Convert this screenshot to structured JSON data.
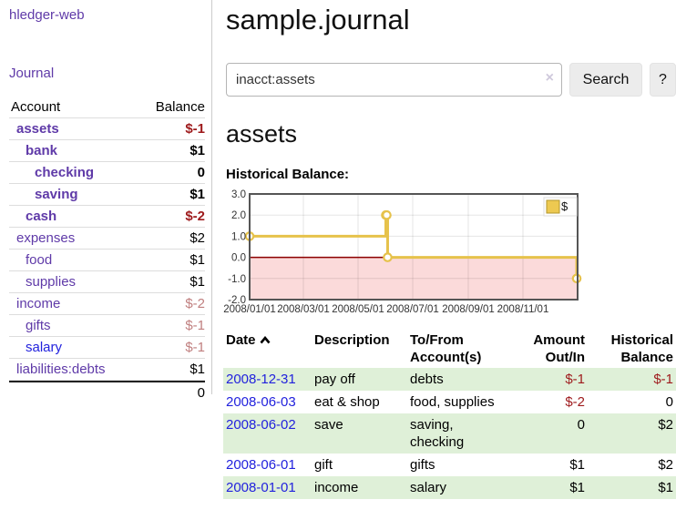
{
  "app": {
    "brand": "hledger-web",
    "journal_link": "Journal"
  },
  "sidebar": {
    "header": {
      "account": "Account",
      "balance": "Balance"
    },
    "accounts": [
      {
        "name": "assets",
        "balance": "$-1"
      },
      {
        "name": "bank",
        "balance": "$1"
      },
      {
        "name": "checking",
        "balance": "0"
      },
      {
        "name": "saving",
        "balance": "$1"
      },
      {
        "name": "cash",
        "balance": "$-2"
      },
      {
        "name": "expenses",
        "balance": "$2"
      },
      {
        "name": "food",
        "balance": "$1"
      },
      {
        "name": "supplies",
        "balance": "$1"
      },
      {
        "name": "income",
        "balance": "$-2"
      },
      {
        "name": "gifts",
        "balance": "$-1"
      },
      {
        "name": "salary",
        "balance": "$-1"
      },
      {
        "name": "liabilities:debts",
        "balance": "$1"
      }
    ],
    "total": "0"
  },
  "main": {
    "title": "sample.journal",
    "search": {
      "value": "inacct:assets",
      "clear_icon": "×",
      "button": "Search",
      "help_button": "?"
    },
    "account_heading": "assets",
    "chart_label": "Historical Balance:"
  },
  "chart_data": {
    "type": "line",
    "step": true,
    "title": "Historical Balance",
    "legend": "$",
    "legend_position": "top-right",
    "grid": true,
    "ylim": [
      -2,
      3
    ],
    "xlim": [
      "2008-01-01",
      "2009-01-01"
    ],
    "yticks": [
      "3.0",
      "2.0",
      "1.0",
      "0.0",
      "-1.0",
      "-2.0"
    ],
    "ytick_values": [
      3,
      2,
      1,
      0,
      -1,
      -2
    ],
    "xticks": [
      "2008/01/01",
      "2008/03/01",
      "2008/05/01",
      "2008/07/01",
      "2008/09/01",
      "2008/11/01"
    ],
    "series": [
      {
        "name": "$",
        "x": [
          "2008-01-01",
          "2008-06-01",
          "2008-06-02",
          "2008-06-03",
          "2008-12-31"
        ],
        "y": [
          1,
          2,
          2,
          0,
          -1
        ]
      }
    ],
    "line_color": "#e6c24b",
    "marker_fill": "#ffffff",
    "zero_line_color": "#8c0000",
    "negative_region_color": "#fbdada",
    "plot_border_color": "#555555",
    "legend_swatch_color": "#edc951"
  },
  "register": {
    "headers": {
      "date": "Date",
      "description": "Description",
      "accounts_l1": "To/From",
      "accounts_l2": "Account(s)",
      "amount_l1": "Amount",
      "amount_l2": "Out/In",
      "balance_l1": "Historical",
      "balance_l2": "Balance"
    },
    "rows": [
      {
        "date": "2008-12-31",
        "description": "pay off",
        "accounts": "debts",
        "amount": "$-1",
        "balance": "$-1"
      },
      {
        "date": "2008-06-03",
        "description": "eat & shop",
        "accounts": "food, supplies",
        "amount": "$-2",
        "balance": "0"
      },
      {
        "date": "2008-06-02",
        "description": "save",
        "accounts": "saving, checking",
        "amount": "0",
        "balance": "$2"
      },
      {
        "date": "2008-06-01",
        "description": "gift",
        "accounts": "gifts",
        "amount": "$1",
        "balance": "$2"
      },
      {
        "date": "2008-01-01",
        "description": "income",
        "accounts": "salary",
        "amount": "$1",
        "balance": "$1"
      }
    ]
  }
}
